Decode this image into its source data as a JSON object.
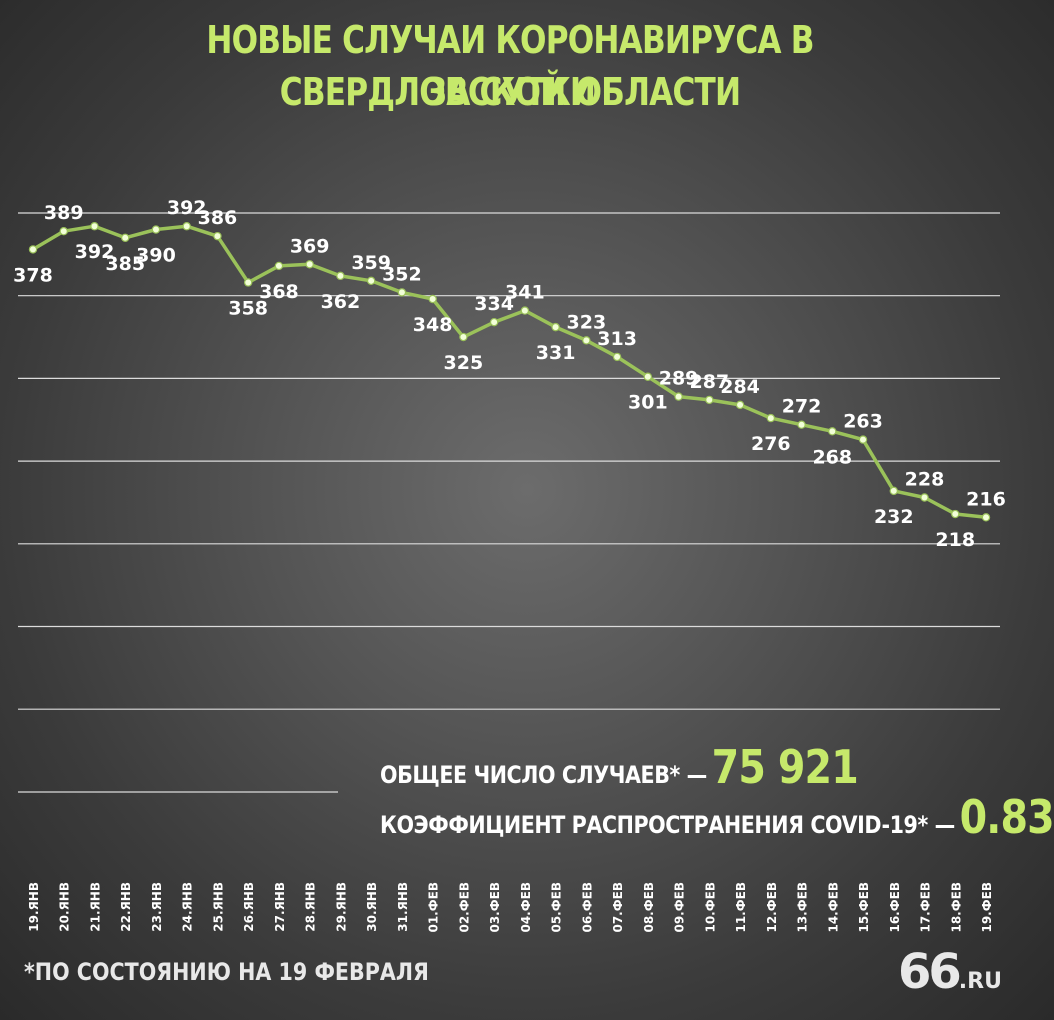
{
  "title": {
    "line1": "НОВЫЕ СЛУЧАИ КОРОНАВИРУСА В СВЕРДЛОВСКОЙ ОБЛАСТИ",
    "line2": "ЗА СУТКИ"
  },
  "stats": {
    "total_label": "ОБЩЕЕ ЧИСЛО СЛУЧАЕВ* —",
    "total_value": "75 921",
    "coef_label": "КОЭФФИЦИЕНТ РАСПРОСТРАНЕНИЯ COVID-19* —",
    "coef_value": "0.83"
  },
  "footnote": "*ПО СОСТОЯНИЮ НА 19 ФЕВРАЛЯ",
  "logo": {
    "big": "66",
    "small": ".RU"
  },
  "colors": {
    "accent": "#c6e96b",
    "line": "#9bc25a",
    "text": "#ffffff",
    "grid": "#dcdcdc"
  },
  "chart_data": {
    "type": "line",
    "grid": true,
    "categories": [
      "19.ЯНВ",
      "20.ЯНВ",
      "21.ЯНВ",
      "22.ЯНВ",
      "23.ЯНВ",
      "24.ЯНВ",
      "25.ЯНВ",
      "26.ЯНВ",
      "27.ЯНВ",
      "28.ЯНВ",
      "29.ЯНВ",
      "30.ЯНВ",
      "31.ЯНВ",
      "01.ФЕВ",
      "02.ФЕВ",
      "03.ФЕВ",
      "04.ФЕВ",
      "05.ФЕВ",
      "06.ФЕВ",
      "07.ФЕВ",
      "08.ФЕВ",
      "09.ФЕВ",
      "10.ФЕВ",
      "11.ФЕВ",
      "12.ФЕВ",
      "13.ФЕВ",
      "14.ФЕВ",
      "15.ФЕВ",
      "16.ФЕВ",
      "17.ФЕВ",
      "18.ФЕВ",
      "19.ФЕВ"
    ],
    "values": [
      378,
      389,
      392,
      385,
      390,
      392,
      386,
      358,
      368,
      369,
      362,
      359,
      352,
      348,
      325,
      334,
      341,
      331,
      323,
      313,
      301,
      289,
      287,
      284,
      276,
      272,
      268,
      263,
      232,
      228,
      218,
      216
    ],
    "ylim": [
      100,
      400
    ]
  }
}
